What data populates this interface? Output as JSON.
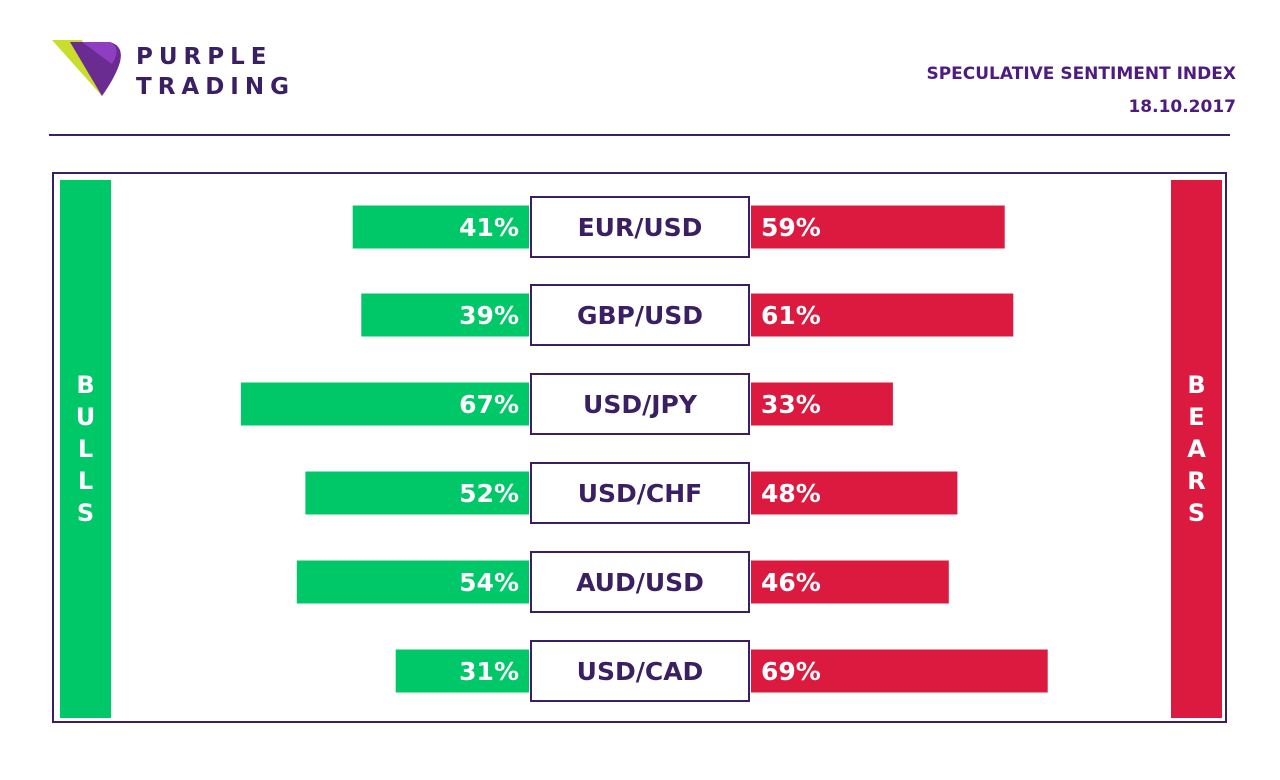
{
  "brand": {
    "line1": "PURPLE",
    "line2": "TRADING",
    "logo_icon": "purple-trading-logo-icon"
  },
  "header": {
    "title": "SPECULATIVE SENTIMENT INDEX",
    "date": "18.10.2017"
  },
  "sides": {
    "bulls": "BULLS",
    "bears": "BEARS"
  },
  "colors": {
    "bulls": "#00c767",
    "bears": "#dc1a40",
    "brand": "#3b1f63",
    "accent": "#4e1c7e"
  },
  "chart_data": {
    "type": "bar",
    "title": "SPECULATIVE SENTIMENT INDEX",
    "categories": [
      "EUR/USD",
      "GBP/USD",
      "USD/JPY",
      "USD/CHF",
      "AUD/USD",
      "USD/CAD"
    ],
    "series": [
      {
        "name": "BULLS",
        "values": [
          41,
          39,
          67,
          52,
          54,
          31
        ],
        "labels": [
          "41%",
          "39%",
          "67%",
          "52%",
          "54%",
          "31%"
        ]
      },
      {
        "name": "BEARS",
        "values": [
          59,
          61,
          33,
          48,
          46,
          69
        ],
        "labels": [
          "59%",
          "61%",
          "33%",
          "48%",
          "46%",
          "69%"
        ]
      }
    ]
  }
}
